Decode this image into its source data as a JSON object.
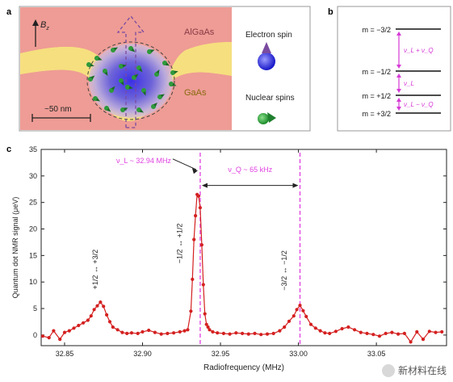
{
  "panel_a": {
    "letter": "a",
    "field_label": "B",
    "field_sub": "z",
    "algaas_label": "AlGaAs",
    "gaas_label": "GaAs",
    "scale_label": "~50 nm",
    "electron_spin_label": "Electron spin",
    "nuclear_spins_label": "Nuclear spins",
    "colors": {
      "algaas": "#ee9c95",
      "gaas": "#f6df7f",
      "dot": "#3c3ce0",
      "arrow": "#7a4ba0",
      "spin": "#2e9a3c"
    }
  },
  "panel_b": {
    "letter": "b",
    "levels": [
      "m = −3/2",
      "m = −1/2",
      "m = +1/2",
      "m = +3/2"
    ],
    "gap_labels": [
      "ν_L + ν_Q",
      "ν_L",
      "ν_L − ν_Q"
    ],
    "arrow_color": "#d63ad6"
  },
  "panel_c": {
    "letter": "c",
    "vline_color": "#e040e0",
    "series_color": "#d42020"
  },
  "chart_data": {
    "type": "line",
    "xlabel": "Radiofrequency (MHz)",
    "ylabel": "Quantum dot NMR signal (μeV)",
    "xlim": [
      32.835,
      33.095
    ],
    "ylim": [
      -2,
      35
    ],
    "xticks": [
      32.85,
      32.9,
      32.95,
      33.0,
      33.05
    ],
    "xtick_labels": [
      "32.85",
      "32.90",
      "32.95",
      "33.00",
      "33.05"
    ],
    "yticks": [
      0,
      5,
      10,
      15,
      20,
      25,
      30,
      35
    ],
    "vlines": [
      32.937,
      33.001
    ],
    "annotations": {
      "larmor": "ν_L ~ 32.94 MHz",
      "quad": "ν_Q ~ 65 kHz",
      "t1": "+1/2 ↔ +3/2",
      "t2": "−1/2 ↔ +1/2",
      "t3": "−3/2 ↔ −1/2"
    },
    "x": [
      32.836,
      32.84,
      32.843,
      32.847,
      32.85,
      32.853,
      32.856,
      32.859,
      32.862,
      32.865,
      32.867,
      32.869,
      32.871,
      32.873,
      32.875,
      32.877,
      32.879,
      32.881,
      32.884,
      32.887,
      32.89,
      32.893,
      32.897,
      32.9,
      32.904,
      32.908,
      32.912,
      32.916,
      32.92,
      32.924,
      32.927,
      32.929,
      32.931,
      32.932,
      32.933,
      32.934,
      32.935,
      32.936,
      32.937,
      32.938,
      32.939,
      32.94,
      32.941,
      32.942,
      32.943,
      32.945,
      32.948,
      32.952,
      32.956,
      32.96,
      32.964,
      32.968,
      32.972,
      32.976,
      32.98,
      32.984,
      32.988,
      32.991,
      32.994,
      32.997,
      32.999,
      33.001,
      33.003,
      33.005,
      33.008,
      33.011,
      33.014,
      33.017,
      33.02,
      33.024,
      33.028,
      33.032,
      33.036,
      33.04,
      33.044,
      33.048,
      33.052,
      33.056,
      33.06,
      33.064,
      33.068,
      33.072,
      33.076,
      33.08,
      33.084,
      33.088,
      33.092
    ],
    "y": [
      -0.2,
      -0.5,
      0.8,
      -0.8,
      0.5,
      0.8,
      1.3,
      1.8,
      2.3,
      2.8,
      3.6,
      4.8,
      5.5,
      6.2,
      5.4,
      3.8,
      2.5,
      1.5,
      1.0,
      0.5,
      0.3,
      0.4,
      0.3,
      0.6,
      0.9,
      0.5,
      0.2,
      0.3,
      0.4,
      0.6,
      0.8,
      1.0,
      4.5,
      10.5,
      18.0,
      22.5,
      26.5,
      26.2,
      24.0,
      17.0,
      9.5,
      4.0,
      2.0,
      1.5,
      1.0,
      0.6,
      0.4,
      0.3,
      0.2,
      0.4,
      0.3,
      0.2,
      0.3,
      0.1,
      0.2,
      0.3,
      0.8,
      1.5,
      2.6,
      3.6,
      4.8,
      5.6,
      4.6,
      3.5,
      2.0,
      1.3,
      0.8,
      0.4,
      0.3,
      0.7,
      1.2,
      1.5,
      1.0,
      0.5,
      0.3,
      0.1,
      -0.2,
      0.3,
      0.5,
      0.2,
      0.3,
      -1.3,
      0.6,
      -0.8,
      0.7,
      0.5,
      0.6
    ]
  }
}
